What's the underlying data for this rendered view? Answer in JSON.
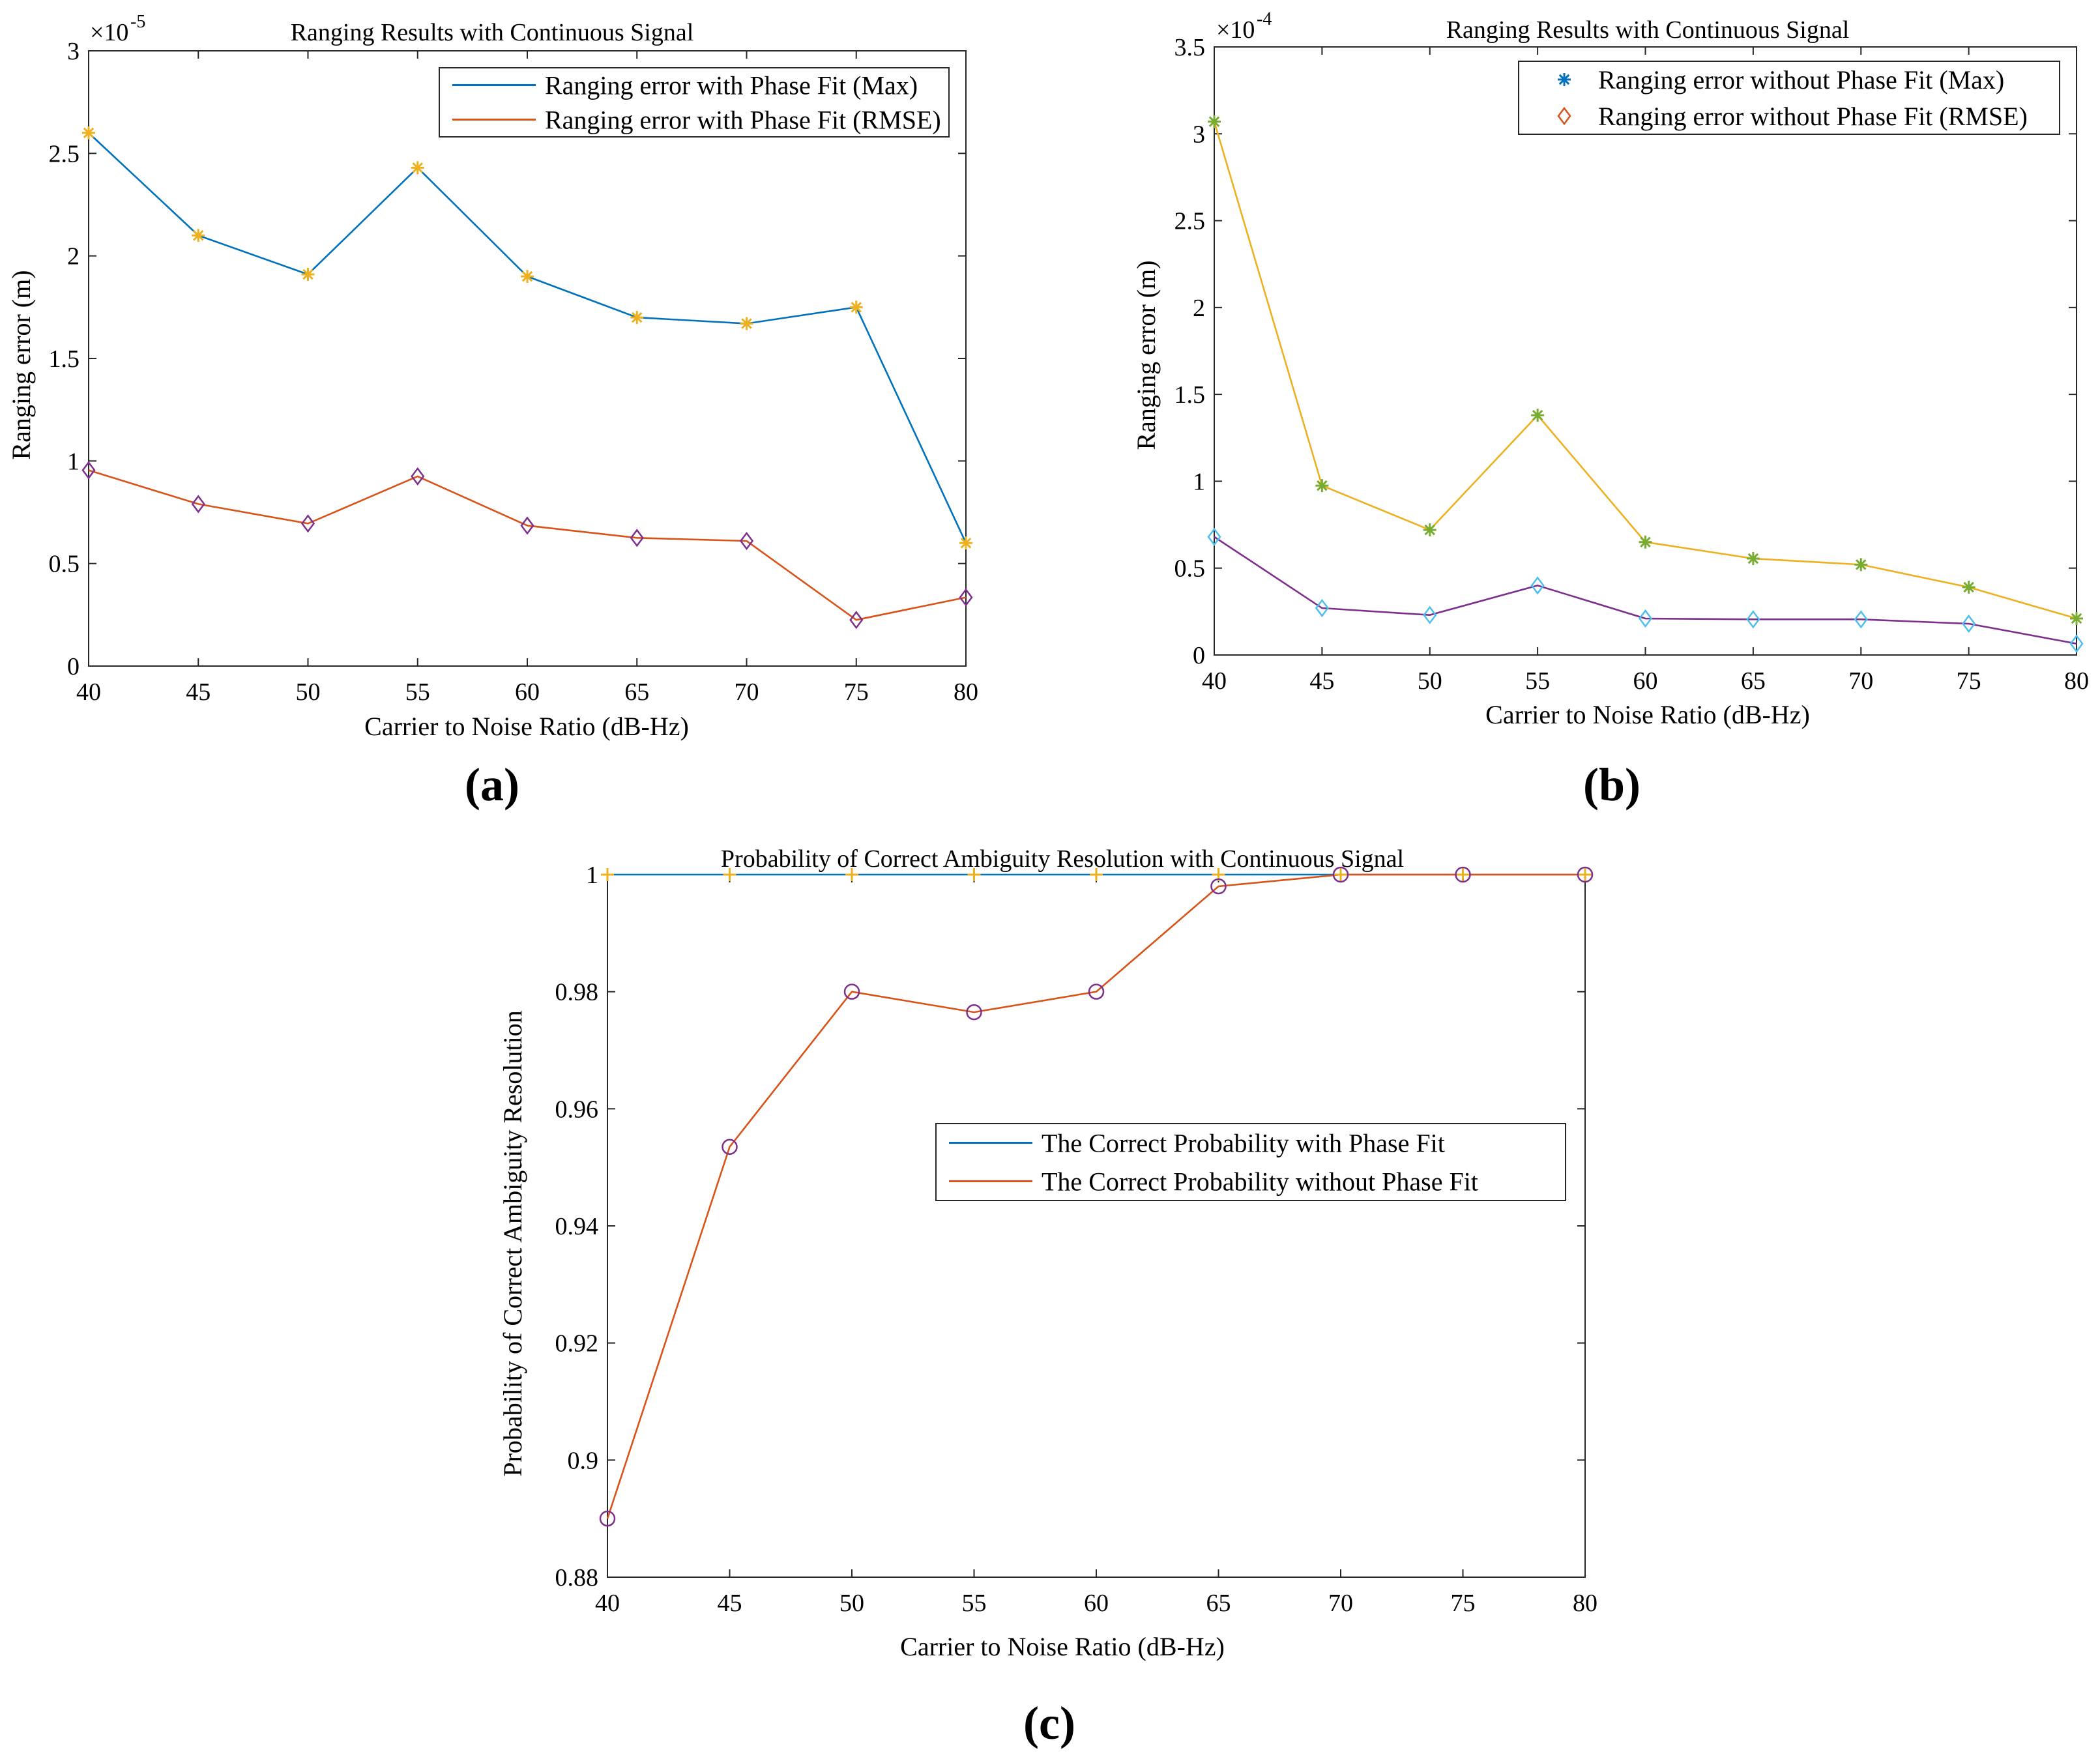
{
  "chart_data": [
    {
      "id": "a",
      "type": "line",
      "panel_label": "(a)",
      "title": "Ranging Results with Continuous Signal",
      "xlabel": "Carrier to Noise Ratio (dB-Hz)",
      "ylabel": "Ranging error (m)",
      "exponent_base": "×10",
      "exponent_power": "-5",
      "x": [
        40,
        45,
        50,
        55,
        60,
        65,
        70,
        75,
        80
      ],
      "xlim": [
        40,
        80
      ],
      "ylim": [
        0,
        3
      ],
      "xticks": [
        "40",
        "45",
        "50",
        "55",
        "60",
        "65",
        "70",
        "75",
        "80"
      ],
      "yticks": [
        "0",
        "0.5",
        "1",
        "1.5",
        "2",
        "2.5",
        "3"
      ],
      "legend_position": "top-right",
      "series": [
        {
          "name": "Ranging error with Phase Fit (Max)",
          "values": [
            2.6,
            2.1,
            1.91,
            2.43,
            1.9,
            1.7,
            1.67,
            1.75,
            0.6
          ],
          "line_color": "#0072BD",
          "marker": "asterisk",
          "marker_color": "#EDB120",
          "show_line": true
        },
        {
          "name": "Ranging error with Phase Fit (RMSE)",
          "values": [
            0.955,
            0.79,
            0.695,
            0.925,
            0.685,
            0.625,
            0.61,
            0.225,
            0.335
          ],
          "line_color": "#D95319",
          "marker": "diamond",
          "marker_color": "#7E2F8E",
          "show_line": true
        }
      ]
    },
    {
      "id": "b",
      "type": "line",
      "panel_label": "(b)",
      "title": "Ranging Results with Continuous Signal",
      "xlabel": "Carrier to Noise Ratio (dB-Hz)",
      "ylabel": "Ranging error (m)",
      "exponent_base": "×10",
      "exponent_power": "-4",
      "x": [
        40,
        45,
        50,
        55,
        60,
        65,
        70,
        75,
        80
      ],
      "xlim": [
        40,
        80
      ],
      "ylim": [
        0,
        3.5
      ],
      "xticks": [
        "40",
        "45",
        "50",
        "55",
        "60",
        "65",
        "70",
        "75",
        "80"
      ],
      "yticks": [
        "0",
        "0.5",
        "1",
        "1.5",
        "2",
        "2.5",
        "3",
        "3.5"
      ],
      "legend_position": "top-right",
      "series": [
        {
          "name": "Ranging error without Phase Fit (Max)",
          "values": [
            3.07,
            0.975,
            0.72,
            1.38,
            0.65,
            0.555,
            0.52,
            0.39,
            0.21
          ],
          "line_color": "#EDB120",
          "marker": "asterisk",
          "marker_color": "#77AC30",
          "legend_color": "#0072BD",
          "show_line": true
        },
        {
          "name": "Ranging error without Phase Fit (RMSE)",
          "values": [
            0.68,
            0.27,
            0.23,
            0.4,
            0.21,
            0.205,
            0.205,
            0.18,
            0.065
          ],
          "line_color": "#7E2F8E",
          "marker": "diamond",
          "marker_color": "#4DBEEE",
          "legend_color": "#D95319",
          "show_line": true
        }
      ]
    },
    {
      "id": "c",
      "type": "line",
      "panel_label": "(c)",
      "title": "Probability of Correct Ambiguity Resolution with Continuous Signal",
      "xlabel": "Carrier to Noise Ratio (dB-Hz)",
      "ylabel": "Probability of Correct Ambiguity Resolution",
      "x": [
        40,
        45,
        50,
        55,
        60,
        65,
        70,
        75,
        80
      ],
      "xlim": [
        40,
        80
      ],
      "ylim": [
        0.88,
        1.0
      ],
      "xticks": [
        "40",
        "45",
        "50",
        "55",
        "60",
        "65",
        "70",
        "75",
        "80"
      ],
      "yticks": [
        "0.88",
        "0.9",
        "0.92",
        "0.94",
        "0.96",
        "0.98",
        "1"
      ],
      "legend_position": "center-right",
      "series": [
        {
          "name": "The Correct Probability with Phase Fit",
          "values": [
            1,
            1,
            1,
            1,
            1,
            1,
            1,
            1,
            1
          ],
          "line_color": "#0072BD",
          "marker": "plus",
          "marker_color": "#EDB120",
          "show_line": true
        },
        {
          "name": "The Correct Probability without Phase Fit",
          "values": [
            0.89,
            0.9535,
            0.98,
            0.9765,
            0.98,
            0.998,
            1.0,
            1.0,
            1.0
          ],
          "line_color": "#D95319",
          "marker": "circle",
          "marker_color": "#7E2F8E",
          "show_line": true
        }
      ]
    }
  ]
}
